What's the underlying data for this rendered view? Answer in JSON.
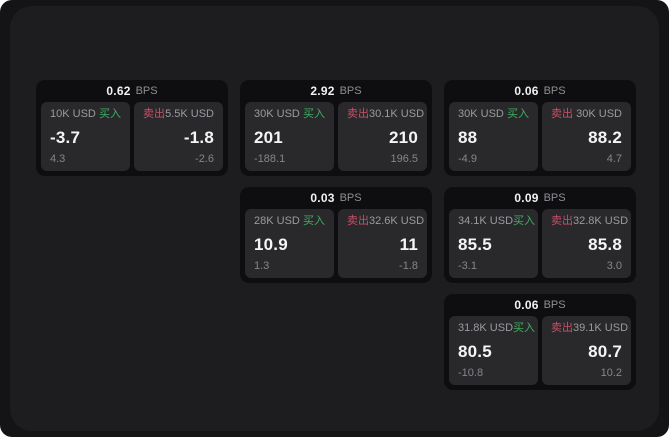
{
  "labels": {
    "bps": "BPS",
    "buy": "买入",
    "sell": "卖出"
  },
  "colors": {
    "buy": "#3fae62",
    "sell": "#c94f66",
    "screen_bg": "#141416",
    "panel_bg": "#1d1d1f",
    "card_bg": "#0e0e10",
    "tile_bg": "#29292c",
    "text_primary": "#f5f5f6",
    "text_muted": "#9a9aa0",
    "text_dim": "#85858b"
  },
  "cards": [
    {
      "row": "1",
      "col": "1",
      "bps": "0.62",
      "buy": {
        "amount": "10K USD",
        "price": "-3.7",
        "delta": "4.3"
      },
      "sell": {
        "amount": "5.5K USD",
        "price": "-1.8",
        "delta": "-2.6"
      }
    },
    {
      "row": "1",
      "col": "2",
      "bps": "2.92",
      "buy": {
        "amount": "30K USD",
        "price": "201",
        "delta": "-188.1"
      },
      "sell": {
        "amount": "30.1K USD",
        "price": "210",
        "delta": "196.5"
      }
    },
    {
      "row": "1",
      "col": "3",
      "bps": "0.06",
      "buy": {
        "amount": "30K USD",
        "price": "88",
        "delta": "-4.9"
      },
      "sell": {
        "amount": "30K USD",
        "price": "88.2",
        "delta": "4.7"
      }
    },
    {
      "row": "2",
      "col": "2",
      "bps": "0.03",
      "buy": {
        "amount": "28K USD",
        "price": "10.9",
        "delta": "1.3"
      },
      "sell": {
        "amount": "32.6K USD",
        "price": "11",
        "delta": "-1.8"
      }
    },
    {
      "row": "2",
      "col": "3",
      "bps": "0.09",
      "buy": {
        "amount": "34.1K USD",
        "price": "85.5",
        "delta": "-3.1"
      },
      "sell": {
        "amount": "32.8K USD",
        "price": "85.8",
        "delta": "3.0"
      }
    },
    {
      "row": "3",
      "col": "3",
      "bps": "0.06",
      "buy": {
        "amount": "31.8K USD",
        "price": "80.5",
        "delta": "-10.8"
      },
      "sell": {
        "amount": "39.1K USD",
        "price": "80.7",
        "delta": "10.2"
      }
    }
  ]
}
